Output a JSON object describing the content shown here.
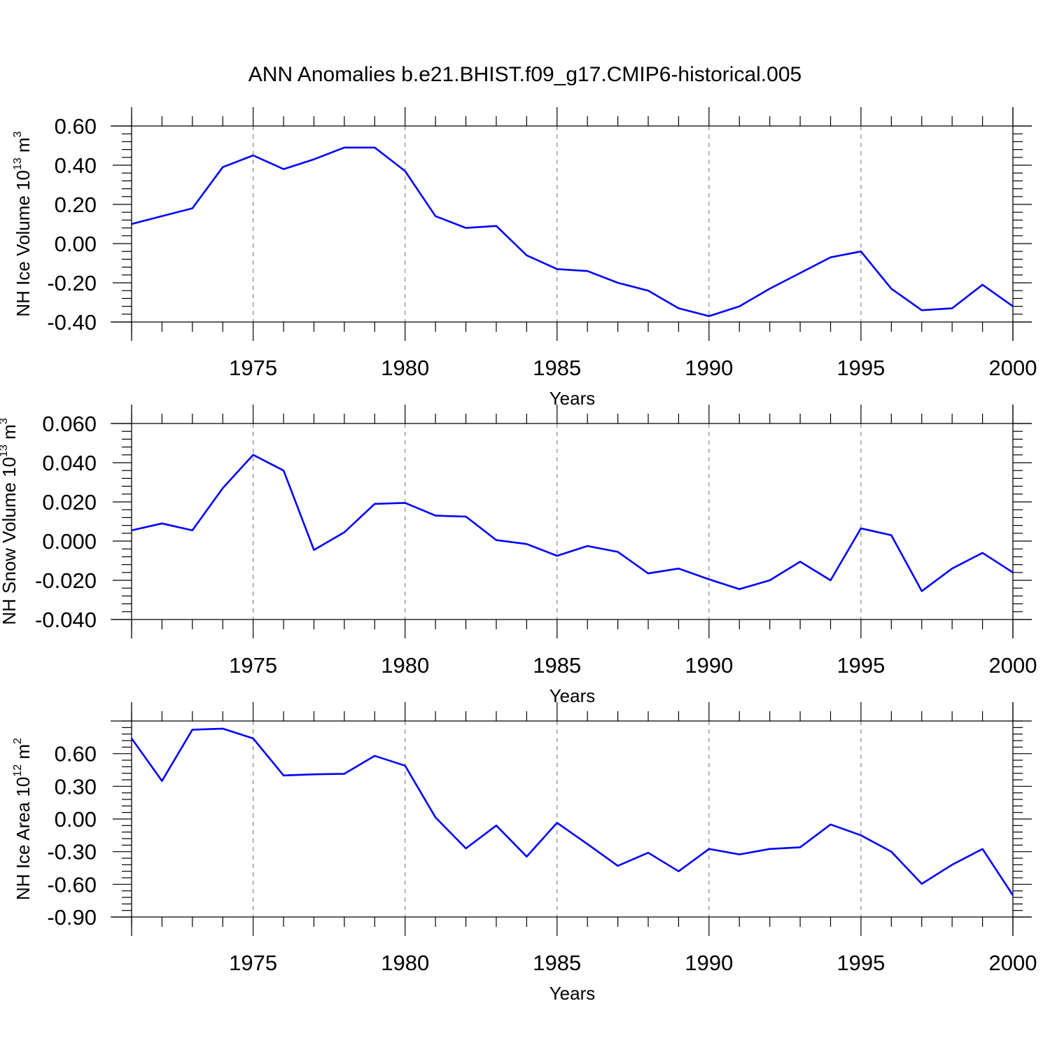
{
  "title": "ANN Anomalies b.e21.BHIST.f09_g17.CMIP6-historical.005",
  "colors": {
    "line": "#0000ff",
    "axis": "#000000",
    "grid": "#888888"
  },
  "chart_data": [
    {
      "type": "line",
      "xlabel": "Years",
      "ylabel": {
        "text": "NH Ice Volume 10",
        "exp": "13",
        "unit": " m",
        "unit_exp": "3"
      },
      "xlim": [
        1971,
        2000
      ],
      "ylim": [
        -0.4,
        0.6
      ],
      "yticks": [
        -0.4,
        -0.2,
        0.0,
        0.2,
        0.4,
        0.6
      ],
      "ytick_labels": [
        "-0.40",
        "-0.20",
        "0.00",
        "0.20",
        "0.40",
        "0.60"
      ],
      "xticks": [
        1975,
        1980,
        1985,
        1990,
        1995,
        2000
      ],
      "xtick_labels": [
        "1975",
        "1980",
        "1985",
        "1990",
        "1995",
        "2000"
      ],
      "grid": "vertical dashed at major x ticks",
      "x": [
        1971,
        1972,
        1973,
        1974,
        1975,
        1976,
        1977,
        1978,
        1979,
        1980,
        1981,
        1982,
        1983,
        1984,
        1985,
        1986,
        1987,
        1988,
        1989,
        1990,
        1991,
        1992,
        1993,
        1994,
        1995,
        1996,
        1997,
        1998,
        1999,
        2000
      ],
      "values": [
        0.1,
        0.14,
        0.18,
        0.39,
        0.45,
        0.38,
        0.43,
        0.49,
        0.49,
        0.37,
        0.14,
        0.08,
        0.09,
        -0.06,
        -0.13,
        -0.14,
        -0.2,
        -0.24,
        -0.33,
        -0.37,
        -0.32,
        -0.23,
        -0.15,
        -0.07,
        -0.04,
        -0.23,
        -0.34,
        -0.33,
        -0.21,
        -0.32
      ]
    },
    {
      "type": "line",
      "xlabel": "Years",
      "ylabel": {
        "text": "NH Snow Volume 10",
        "exp": "13",
        "unit": " m",
        "unit_exp": "3"
      },
      "xlim": [
        1971,
        2000
      ],
      "ylim": [
        -0.04,
        0.06
      ],
      "yticks": [
        -0.04,
        -0.02,
        0.0,
        0.02,
        0.04,
        0.06
      ],
      "ytick_labels": [
        "-0.040",
        "-0.020",
        "0.000",
        "0.020",
        "0.040",
        "0.060"
      ],
      "xticks": [
        1975,
        1980,
        1985,
        1990,
        1995,
        2000
      ],
      "xtick_labels": [
        "1975",
        "1980",
        "1985",
        "1990",
        "1995",
        "2000"
      ],
      "grid": "vertical dashed at major x ticks",
      "x": [
        1971,
        1972,
        1973,
        1974,
        1975,
        1976,
        1977,
        1978,
        1979,
        1980,
        1981,
        1982,
        1983,
        1984,
        1985,
        1986,
        1987,
        1988,
        1989,
        1990,
        1991,
        1992,
        1993,
        1994,
        1995,
        1996,
        1997,
        1998,
        1999,
        2000
      ],
      "values": [
        0.0055,
        0.009,
        0.0055,
        0.027,
        0.044,
        0.036,
        -0.0045,
        0.0045,
        0.019,
        0.0195,
        0.013,
        0.0125,
        0.0005,
        -0.0015,
        -0.0075,
        -0.0025,
        -0.0055,
        -0.0165,
        -0.014,
        -0.0195,
        -0.0245,
        -0.02,
        -0.0105,
        -0.02,
        0.0065,
        0.003,
        -0.0255,
        -0.014,
        -0.006,
        -0.016
      ]
    },
    {
      "type": "line",
      "xlabel": "Years",
      "ylabel": {
        "text": "NH Ice Area 10",
        "exp": "12",
        "unit": " m",
        "unit_exp": "2"
      },
      "xlim": [
        1971,
        2000
      ],
      "ylim": [
        -0.9,
        0.9
      ],
      "yticks": [
        -0.9,
        -0.6,
        -0.3,
        0.0,
        0.3,
        0.6
      ],
      "ytick_labels": [
        "-0.90",
        "-0.60",
        "-0.30",
        "0.00",
        "0.30",
        "0.60"
      ],
      "xticks": [
        1975,
        1980,
        1985,
        1990,
        1995,
        2000
      ],
      "xtick_labels": [
        "1975",
        "1980",
        "1985",
        "1990",
        "1995",
        "2000"
      ],
      "grid": "vertical dashed at major x ticks",
      "x": [
        1971,
        1972,
        1973,
        1974,
        1975,
        1976,
        1977,
        1978,
        1979,
        1980,
        1981,
        1982,
        1983,
        1984,
        1985,
        1986,
        1987,
        1988,
        1989,
        1990,
        1991,
        1992,
        1993,
        1994,
        1995,
        1996,
        1997,
        1998,
        1999,
        2000
      ],
      "values": [
        0.74,
        0.35,
        0.82,
        0.83,
        0.74,
        0.4,
        0.41,
        0.415,
        0.58,
        0.49,
        0.015,
        -0.27,
        -0.06,
        -0.345,
        -0.035,
        -0.23,
        -0.43,
        -0.31,
        -0.48,
        -0.275,
        -0.325,
        -0.275,
        -0.26,
        -0.05,
        -0.15,
        -0.3,
        -0.595,
        -0.42,
        -0.275,
        -0.7
      ]
    }
  ]
}
